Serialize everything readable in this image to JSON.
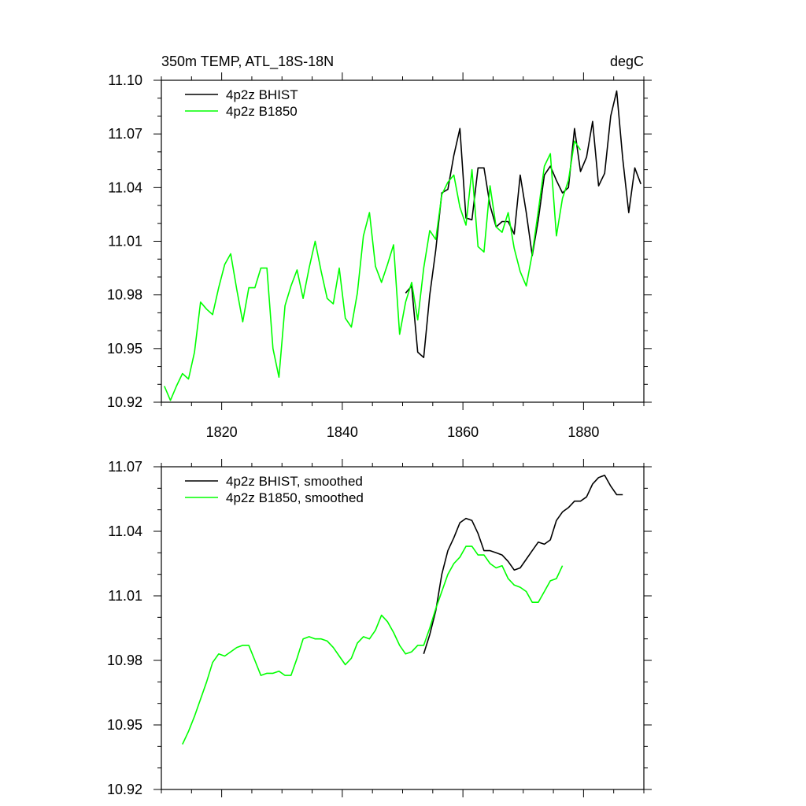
{
  "chart_data": [
    {
      "type": "line",
      "title": "350m TEMP, ATL_18S-18N",
      "units": "degC",
      "xlim": [
        1810,
        1890
      ],
      "ylim": [
        10.92,
        11.1
      ],
      "yticks": [
        "10.92",
        "10.95",
        "10.98",
        "11.01",
        "11.04",
        "11.07",
        "11.10"
      ],
      "xticks": [
        "1820",
        "1840",
        "1860",
        "1880"
      ],
      "legend": "top-left",
      "series": [
        {
          "name": "4p2z BHIST",
          "color": "#000000",
          "x": [
            1850.5,
            1851.5,
            1852.5,
            1853.5,
            1854.5,
            1855.5,
            1856.5,
            1857.5,
            1858.5,
            1859.5,
            1860.5,
            1861.5,
            1862.5,
            1863.5,
            1864.5,
            1865.5,
            1866.5,
            1867.5,
            1868.5,
            1869.5,
            1870.5,
            1871.5,
            1872.5,
            1873.5,
            1874.5,
            1875.5,
            1876.5,
            1877.5,
            1878.5,
            1879.5,
            1880.5,
            1881.5,
            1882.5,
            1883.5,
            1884.5,
            1885.5,
            1886.5,
            1887.5,
            1888.5,
            1889.5
          ],
          "y": [
            10.981,
            10.985,
            10.948,
            10.945,
            10.98,
            11.005,
            11.037,
            11.039,
            11.058,
            11.073,
            11.023,
            11.022,
            11.051,
            11.051,
            11.03,
            11.018,
            11.021,
            11.021,
            11.014,
            11.047,
            11.026,
            11.002,
            11.022,
            11.047,
            11.052,
            11.044,
            11.037,
            11.04,
            11.073,
            11.049,
            11.057,
            11.077,
            11.041,
            11.048,
            11.08,
            11.094,
            11.056,
            11.026,
            11.051,
            11.042
          ]
        },
        {
          "name": "4p2z B1850",
          "color": "#00ff00",
          "x": [
            1810.5,
            1811.5,
            1812.5,
            1813.5,
            1814.5,
            1815.5,
            1816.5,
            1817.5,
            1818.5,
            1819.5,
            1820.5,
            1821.5,
            1822.5,
            1823.5,
            1824.5,
            1825.5,
            1826.5,
            1827.5,
            1828.5,
            1829.5,
            1830.5,
            1831.5,
            1832.5,
            1833.5,
            1834.5,
            1835.5,
            1836.5,
            1837.5,
            1838.5,
            1839.5,
            1840.5,
            1841.5,
            1842.5,
            1843.5,
            1844.5,
            1845.5,
            1846.5,
            1847.5,
            1848.5,
            1849.5,
            1850.5,
            1851.5,
            1852.5,
            1853.5,
            1854.5,
            1855.5,
            1856.5,
            1857.5,
            1858.5,
            1859.5,
            1860.5,
            1861.5,
            1862.5,
            1863.5,
            1864.5,
            1865.5,
            1866.5,
            1867.5,
            1868.5,
            1869.5,
            1870.5,
            1871.5,
            1872.5,
            1873.5,
            1874.5,
            1875.5,
            1876.5,
            1877.5,
            1878.5,
            1879.5
          ],
          "y": [
            10.929,
            10.921,
            10.929,
            10.936,
            10.933,
            10.948,
            10.976,
            10.972,
            10.969,
            10.984,
            10.997,
            11.003,
            10.983,
            10.965,
            10.984,
            10.984,
            10.995,
            10.995,
            10.95,
            10.934,
            10.974,
            10.985,
            10.994,
            10.978,
            10.995,
            11.01,
            10.993,
            10.978,
            10.975,
            10.995,
            10.967,
            10.962,
            10.981,
            11.013,
            11.026,
            10.996,
            10.987,
            10.997,
            11.008,
            10.958,
            10.976,
            10.987,
            10.966,
            10.995,
            11.016,
            11.011,
            11.036,
            11.043,
            11.047,
            11.029,
            11.019,
            11.05,
            11.007,
            11.004,
            11.041,
            11.018,
            11.015,
            11.026,
            11.006,
            10.993,
            10.985,
            11.003,
            11.027,
            11.052,
            11.059,
            11.013,
            11.034,
            11.044,
            11.066,
            11.061
          ]
        }
      ]
    },
    {
      "type": "line",
      "xlim": [
        1810,
        1890
      ],
      "ylim": [
        10.92,
        11.07
      ],
      "yticks": [
        "10.92",
        "10.95",
        "10.98",
        "11.01",
        "11.04",
        "11.07"
      ],
      "legend": "top-left",
      "series": [
        {
          "name": "4p2z BHIST, smoothed",
          "color": "#000000",
          "x": [
            1853.5,
            1854.5,
            1855.5,
            1856.5,
            1857.5,
            1858.5,
            1859.5,
            1860.5,
            1861.5,
            1862.5,
            1863.5,
            1864.5,
            1865.5,
            1866.5,
            1867.5,
            1868.5,
            1869.5,
            1870.5,
            1871.5,
            1872.5,
            1873.5,
            1874.5,
            1875.5,
            1876.5,
            1877.5,
            1878.5,
            1879.5,
            1880.5,
            1881.5,
            1882.5,
            1883.5,
            1884.5,
            1885.5,
            1886.5
          ],
          "y": [
            10.983,
            10.992,
            11.003,
            11.02,
            11.031,
            11.037,
            11.044,
            11.046,
            11.045,
            11.039,
            11.031,
            11.031,
            11.03,
            11.029,
            11.026,
            11.022,
            11.023,
            11.027,
            11.031,
            11.035,
            11.034,
            11.036,
            11.045,
            11.049,
            11.051,
            11.054,
            11.054,
            11.056,
            11.062,
            11.065,
            11.066,
            11.061,
            11.057,
            11.057
          ]
        },
        {
          "name": "4p2z B1850, smoothed",
          "color": "#00ff00",
          "x": [
            1813.5,
            1814.5,
            1815.5,
            1816.5,
            1817.5,
            1818.5,
            1819.5,
            1820.5,
            1821.5,
            1822.5,
            1823.5,
            1824.5,
            1825.5,
            1826.5,
            1827.5,
            1828.5,
            1829.5,
            1830.5,
            1831.5,
            1832.5,
            1833.5,
            1834.5,
            1835.5,
            1836.5,
            1837.5,
            1838.5,
            1839.5,
            1840.5,
            1841.5,
            1842.5,
            1843.5,
            1844.5,
            1845.5,
            1846.5,
            1847.5,
            1848.5,
            1849.5,
            1850.5,
            1851.5,
            1852.5,
            1853.5,
            1854.5,
            1855.5,
            1856.5,
            1857.5,
            1858.5,
            1859.5,
            1860.5,
            1861.5,
            1862.5,
            1863.5,
            1864.5,
            1865.5,
            1866.5,
            1867.5,
            1868.5,
            1869.5,
            1870.5,
            1871.5,
            1872.5,
            1873.5,
            1874.5,
            1875.5,
            1876.5
          ],
          "y": [
            10.941,
            10.947,
            10.954,
            10.962,
            10.97,
            10.979,
            10.983,
            10.982,
            10.984,
            10.986,
            10.987,
            10.987,
            10.98,
            10.973,
            10.974,
            10.974,
            10.975,
            10.973,
            10.973,
            10.981,
            10.99,
            10.991,
            10.99,
            10.99,
            10.989,
            10.986,
            10.982,
            10.978,
            10.981,
            10.988,
            10.991,
            10.99,
            10.994,
            11.001,
            10.998,
            10.993,
            10.987,
            10.983,
            10.984,
            10.987,
            10.987,
            10.995,
            11.004,
            11.012,
            11.02,
            11.025,
            11.028,
            11.033,
            11.033,
            11.029,
            11.029,
            11.025,
            11.023,
            11.024,
            11.018,
            11.015,
            11.014,
            11.012,
            11.007,
            11.007,
            11.012,
            11.017,
            11.018,
            11.024
          ]
        }
      ]
    }
  ]
}
